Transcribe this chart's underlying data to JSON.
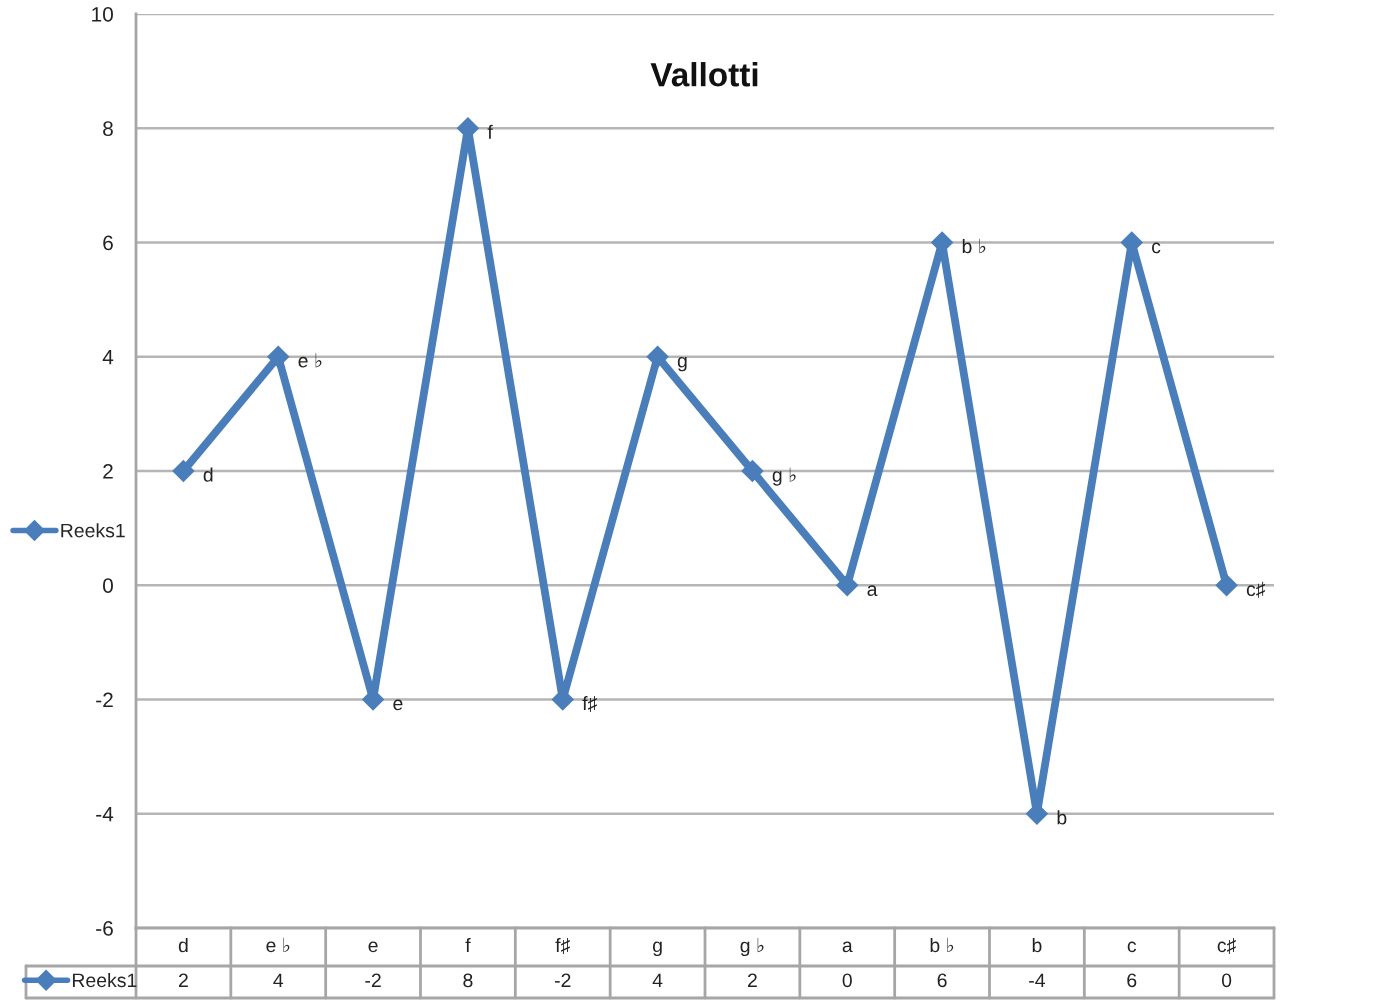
{
  "chart_data": {
    "type": "line",
    "title": "Vallotti",
    "categories": [
      "d",
      "e ♭",
      "e",
      "f",
      "f♯",
      "g",
      "g ♭",
      "a",
      "b ♭",
      "b",
      "c",
      "c♯"
    ],
    "series": [
      {
        "name": "Reeks1",
        "color": "#4a7ebb",
        "values": [
          2,
          4,
          -2,
          8,
          -2,
          4,
          2,
          0,
          6,
          -4,
          6,
          0
        ]
      }
    ],
    "annotations": [
      {
        "text": "d",
        "x": "d",
        "y": 2
      },
      {
        "text": "e ♭",
        "x": "e ♭",
        "y": 4
      },
      {
        "text": "e",
        "x": "e",
        "y": -2
      },
      {
        "text": "f",
        "x": "f",
        "y": 8
      },
      {
        "text": "f♯",
        "x": "f♯",
        "y": -2
      },
      {
        "text": "g",
        "x": "g",
        "y": 4
      },
      {
        "text": "g ♭",
        "x": "g ♭",
        "y": 2
      },
      {
        "text": "a",
        "x": "a",
        "y": 0
      },
      {
        "text": "b ♭",
        "x": "b ♭",
        "y": 6
      },
      {
        "text": "b",
        "x": "b",
        "y": -4
      },
      {
        "text": "c",
        "x": "c",
        "y": 6
      },
      {
        "text": "c♯",
        "x": "c♯",
        "y": 0
      }
    ],
    "ylim": [
      -6,
      10
    ],
    "yticks": [
      -6,
      -4,
      -2,
      0,
      2,
      4,
      6,
      8,
      10
    ],
    "grid": "y",
    "legend": "left",
    "marker": "diamond",
    "line_style": "solid",
    "data_labels": true
  }
}
